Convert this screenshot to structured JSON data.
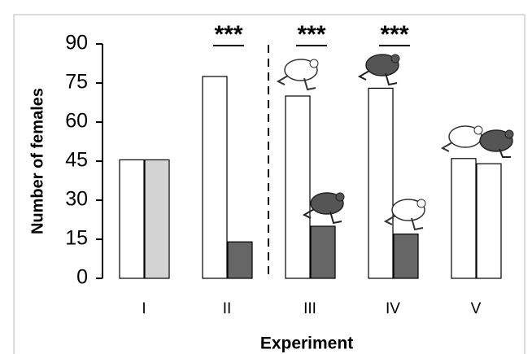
{
  "chart_data": {
    "type": "bar",
    "y_label": "Number of females",
    "x_label": "Experiment",
    "categories": [
      "I",
      "II",
      "III",
      "IV",
      "V"
    ],
    "series": [
      {
        "colors": [
          "#ffffff",
          "#ffffff",
          "#ffffff",
          "#ffffff",
          "#ffffff"
        ],
        "values": [
          45.5,
          77.5,
          70,
          73,
          46
        ]
      },
      {
        "colors": [
          "#d3d3d3",
          "#666666",
          "#666666",
          "#666666",
          "#ffffff"
        ],
        "values": [
          45.5,
          14,
          20,
          17,
          44
        ]
      }
    ],
    "ylim": [
      0,
      90
    ],
    "yticks": [
      0,
      15,
      30,
      45,
      60,
      75,
      90
    ],
    "annotations": [
      "***",
      "***",
      "***"
    ]
  }
}
